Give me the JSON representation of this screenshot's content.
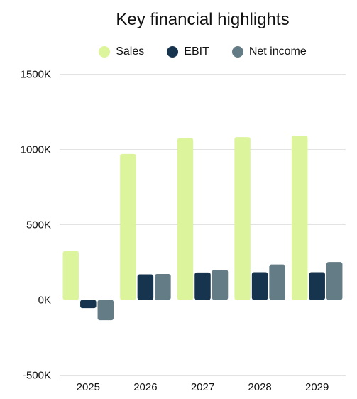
{
  "chart_data": {
    "type": "bar",
    "title": "Key financial highlights",
    "categories": [
      "2025",
      "2026",
      "2027",
      "2028",
      "2029"
    ],
    "series": [
      {
        "name": "Sales",
        "color": "#dcf59c",
        "values": [
          325,
          970,
          1075,
          1082,
          1090
        ]
      },
      {
        "name": "EBIT",
        "color": "#17344f",
        "values": [
          -55,
          170,
          182,
          184,
          184
        ]
      },
      {
        "name": "Net income",
        "color": "#637c86",
        "values": [
          -135,
          172,
          200,
          235,
          252
        ]
      }
    ],
    "ylim": [
      -500,
      1500
    ],
    "yticks": [
      {
        "value": -500,
        "label": "-500K"
      },
      {
        "value": 0,
        "label": "0K"
      },
      {
        "value": 500,
        "label": "500K"
      },
      {
        "value": 1000,
        "label": "1000K"
      },
      {
        "value": 1500,
        "label": "1500K"
      }
    ],
    "grid": true,
    "legend": "top-center"
  }
}
